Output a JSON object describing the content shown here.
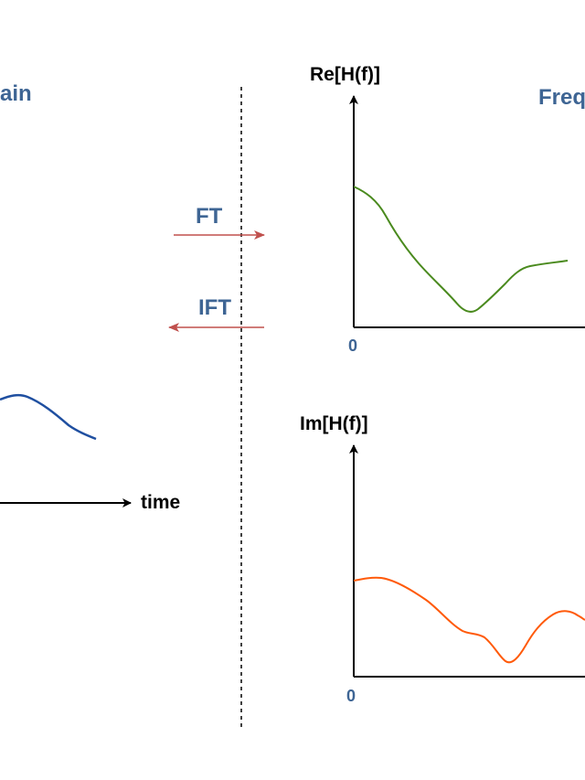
{
  "left_panel": {
    "heading_fragment": "ain",
    "x_axis_label": "time"
  },
  "transforms": {
    "forward": "FT",
    "inverse": "IFT"
  },
  "right_panel": {
    "heading_fragment": "Freq",
    "real_plot": {
      "y_axis_label": "Re[H(f)]",
      "origin_label": "0"
    },
    "imag_plot": {
      "y_axis_label": "Im[H(f)]",
      "origin_label": "0"
    }
  },
  "colors": {
    "label_blue": "#3e6594",
    "time_signal": "#1f4fa0",
    "real_curve": "#4a8a1e",
    "imag_curve": "#ff5a0a",
    "transform_arrows": "#c0504d",
    "axes": "#000000"
  },
  "icons": [
    "arrow-right-icon",
    "arrow-left-icon",
    "axis-arrowhead-icon"
  ]
}
